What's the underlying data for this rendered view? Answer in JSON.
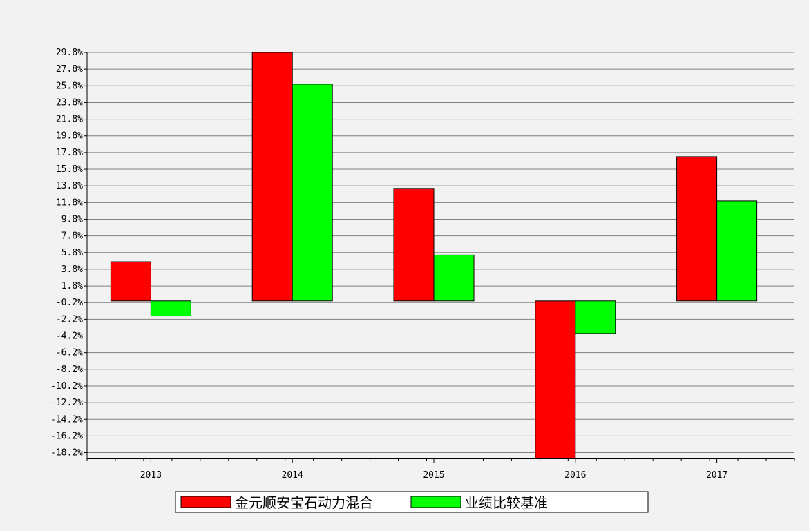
{
  "chart_data": {
    "type": "bar",
    "categories": [
      "2013",
      "2014",
      "2015",
      "2016",
      "2017"
    ],
    "series": [
      {
        "name": "金元顺安宝石动力混合",
        "color": "#ff0000",
        "values": [
          4.7,
          29.8,
          13.5,
          -18.9,
          17.3
        ]
      },
      {
        "name": "业绩比较基准",
        "color": "#00ff00",
        "values": [
          -1.8,
          26.0,
          5.5,
          -3.9,
          12.0
        ]
      }
    ],
    "y_ticks": [
      "29.8%",
      "27.8%",
      "25.8%",
      "23.8%",
      "21.8%",
      "19.8%",
      "17.8%",
      "15.8%",
      "13.8%",
      "11.8%",
      "9.8%",
      "7.8%",
      "5.8%",
      "3.8%",
      "1.8%",
      "-0.2%",
      "-2.2%",
      "-4.2%",
      "-6.2%",
      "-8.2%",
      "-10.2%",
      "-12.2%",
      "-14.2%",
      "-16.2%",
      "-18.2%"
    ],
    "y_tick_values": [
      29.8,
      27.8,
      25.8,
      23.8,
      21.8,
      19.8,
      17.8,
      15.8,
      13.8,
      11.8,
      9.8,
      7.8,
      5.8,
      3.8,
      1.8,
      -0.2,
      -2.2,
      -4.2,
      -6.2,
      -8.2,
      -10.2,
      -12.2,
      -14.2,
      -16.2,
      -18.2
    ],
    "ylim": [
      -18.9,
      29.8
    ],
    "grid": true,
    "legend_position": "bottom-center",
    "title": "",
    "xlabel": "",
    "ylabel": ""
  }
}
